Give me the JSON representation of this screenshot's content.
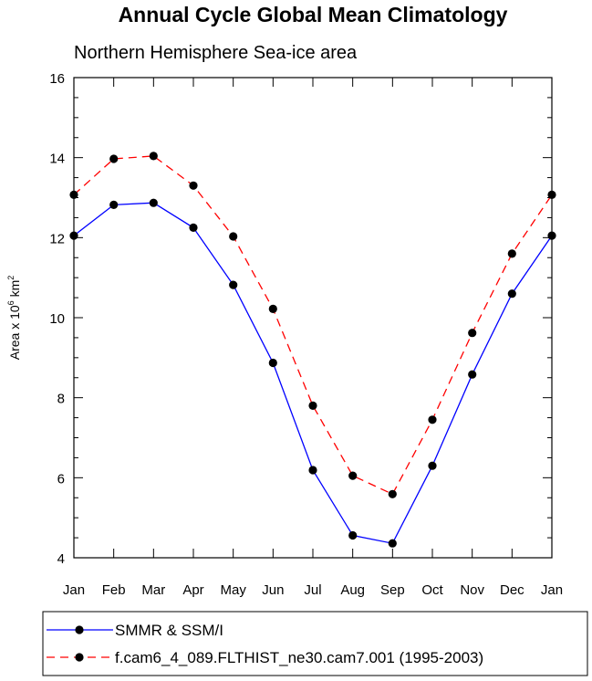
{
  "chart_data": {
    "type": "line",
    "title": "Annual Cycle Global Mean Climatology",
    "subtitle": "Northern Hemisphere Sea-ice area",
    "ylabel_prefix": "Area x 10",
    "ylabel_exponent": "6",
    "ylabel_unit": " km",
    "ylabel_unit_exponent": "2",
    "ylim": [
      4,
      16
    ],
    "yticks": [
      4,
      6,
      8,
      10,
      12,
      14,
      16
    ],
    "categories": [
      "Jan",
      "Feb",
      "Mar",
      "Apr",
      "May",
      "Jun",
      "Jul",
      "Aug",
      "Sep",
      "Oct",
      "Nov",
      "Dec",
      "Jan"
    ],
    "series": [
      {
        "name": "SMMR & SSM/I",
        "color": "#0000ff",
        "dash": "solid",
        "values": [
          12.05,
          12.82,
          12.87,
          12.25,
          10.82,
          8.87,
          6.19,
          4.56,
          4.36,
          6.3,
          8.58,
          10.6,
          12.05
        ]
      },
      {
        "name": "f.cam6_4_089.FLTHIST_ne30.cam7.001 (1995-2003)",
        "color": "#ff0000",
        "dash": "dashed",
        "values": [
          13.07,
          13.97,
          14.04,
          13.3,
          12.03,
          10.22,
          7.8,
          6.05,
          5.59,
          7.45,
          9.62,
          11.6,
          13.07
        ]
      }
    ],
    "grid": false,
    "legend_position": "bottom"
  }
}
